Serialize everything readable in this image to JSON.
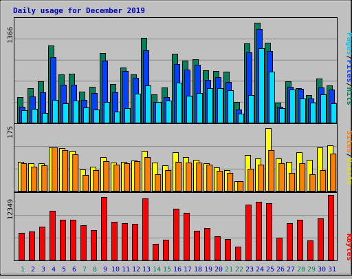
{
  "title": "Daily usage for December 2019",
  "colors": {
    "background": "#c0c0c0",
    "panel": "#c0c0c0",
    "grid": "#888888",
    "hits": "#00805c",
    "files": "#0040ff",
    "pages": "#00e0ff",
    "visits": "#ffff00",
    "sites": "#ff8000",
    "kbytes": "#ff0000",
    "title": "#0000c0",
    "weekend_label": "#00805c",
    "weekday_label": "#0000c0"
  },
  "chart_data": [
    {
      "type": "bar",
      "name": "hits-files-pages",
      "ymax_label": "1366",
      "ylim": [
        0,
        1366
      ],
      "legend": [
        "Pages",
        "/",
        "Files",
        "/",
        "Hits"
      ],
      "categories": [
        "1",
        "2",
        "3",
        "4",
        "5",
        "6",
        "7",
        "8",
        "9",
        "10",
        "11",
        "12",
        "13",
        "14",
        "15",
        "16",
        "17",
        "18",
        "19",
        "20",
        "21",
        "22",
        "23",
        "24",
        "25",
        "26",
        "27",
        "28",
        "29",
        "30",
        "31"
      ],
      "series": [
        {
          "name": "Hits",
          "values": [
            340,
            460,
            550,
            1020,
            640,
            650,
            420,
            480,
            920,
            520,
            730,
            640,
            1120,
            380,
            470,
            910,
            820,
            840,
            700,
            690,
            680,
            280,
            1050,
            1320,
            1060,
            270,
            550,
            460,
            370,
            590,
            500
          ]
        },
        {
          "name": "Files",
          "values": [
            220,
            350,
            410,
            870,
            510,
            510,
            310,
            400,
            820,
            410,
            690,
            600,
            960,
            280,
            340,
            780,
            710,
            770,
            570,
            610,
            540,
            180,
            930,
            1240,
            950,
            220,
            480,
            450,
            330,
            470,
            440
          ]
        },
        {
          "name": "Pages",
          "values": [
            170,
            190,
            140,
            310,
            260,
            300,
            210,
            180,
            280,
            150,
            200,
            390,
            500,
            280,
            300,
            530,
            360,
            400,
            460,
            460,
            430,
            130,
            370,
            990,
            680,
            200,
            440,
            330,
            270,
            380,
            260
          ]
        }
      ]
    },
    {
      "type": "bar",
      "name": "visits-sites",
      "ymax_label": "175",
      "ylim": [
        0,
        175
      ],
      "legend": [
        "Sites",
        "/",
        "Visits"
      ],
      "categories": [
        "1",
        "2",
        "3",
        "4",
        "5",
        "6",
        "7",
        "8",
        "9",
        "10",
        "11",
        "12",
        "13",
        "14",
        "15",
        "16",
        "17",
        "18",
        "19",
        "20",
        "21",
        "22",
        "23",
        "24",
        "25",
        "26",
        "27",
        "28",
        "29",
        "30",
        "31"
      ],
      "series": [
        {
          "name": "Visits",
          "values": [
            78,
            74,
            75,
            117,
            114,
            108,
            58,
            66,
            92,
            77,
            78,
            82,
            108,
            76,
            70,
            104,
            92,
            84,
            75,
            63,
            57,
            28,
            96,
            88,
            168,
            88,
            78,
            104,
            84,
            117,
            122
          ]
        },
        {
          "name": "Sites",
          "values": [
            75,
            66,
            70,
            117,
            110,
            98,
            44,
            56,
            80,
            72,
            75,
            80,
            92,
            45,
            56,
            78,
            77,
            76,
            72,
            55,
            50,
            28,
            60,
            72,
            110,
            75,
            50,
            74,
            46,
            56,
            101
          ]
        }
      ]
    },
    {
      "type": "bar",
      "name": "kbytes",
      "ymax_label": "12349",
      "ylim": [
        0,
        12349
      ],
      "legend": [
        "KBytes"
      ],
      "categories": [
        "1",
        "2",
        "3",
        "4",
        "5",
        "6",
        "7",
        "8",
        "9",
        "10",
        "11",
        "12",
        "13",
        "14",
        "15",
        "16",
        "17",
        "18",
        "19",
        "20",
        "21",
        "22",
        "23",
        "24",
        "25",
        "26",
        "27",
        "28",
        "29",
        "30",
        "31"
      ],
      "series": [
        {
          "name": "KBytes",
          "values": [
            5100,
            5450,
            6250,
            9300,
            7650,
            7600,
            6600,
            5600,
            11850,
            7150,
            6900,
            6800,
            11600,
            3150,
            3900,
            9700,
            8850,
            5550,
            6050,
            4500,
            4050,
            2550,
            10450,
            10950,
            10650,
            4300,
            6900,
            7600,
            3750,
            7800,
            12249
          ]
        }
      ]
    }
  ]
}
